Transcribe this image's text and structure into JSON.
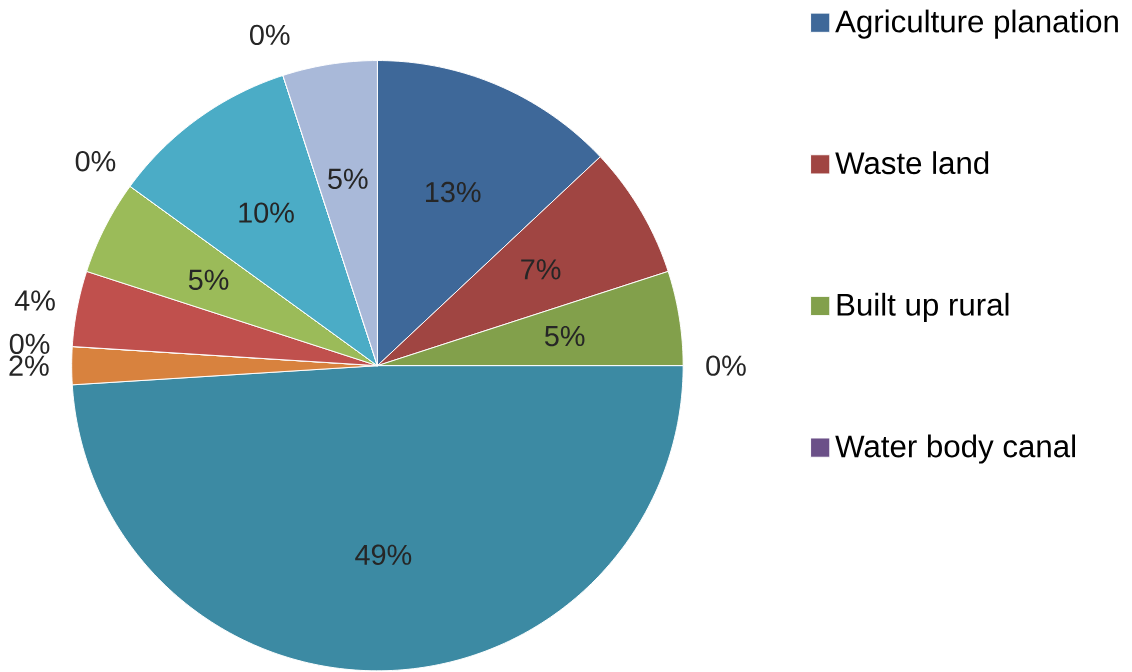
{
  "chart_data": {
    "type": "pie",
    "categories": [
      "Agriculture planation",
      "Waste land",
      "Built up rural",
      "Water body canal",
      null,
      null,
      null,
      null,
      null,
      null,
      null,
      null,
      null
    ],
    "values": [
      13,
      7,
      5,
      0,
      49,
      2,
      0,
      4,
      5,
      0,
      10,
      0,
      5
    ],
    "value_labels": [
      "13%",
      "7%",
      "5%",
      "0%",
      "49%",
      "2%",
      "0%",
      "4%",
      "5%",
      "0%",
      "10%",
      "0%",
      "5%"
    ],
    "colors": [
      "#3e6899",
      "#a04542",
      "#82a04b",
      "#6b5088",
      "#3c8aa3",
      "#d8823e",
      "#4f81bd",
      "#c0504d",
      "#9bbb59",
      "#8064a2",
      "#4bacc6",
      "#f79646",
      "#a9b9d9"
    ],
    "legend": "right"
  }
}
